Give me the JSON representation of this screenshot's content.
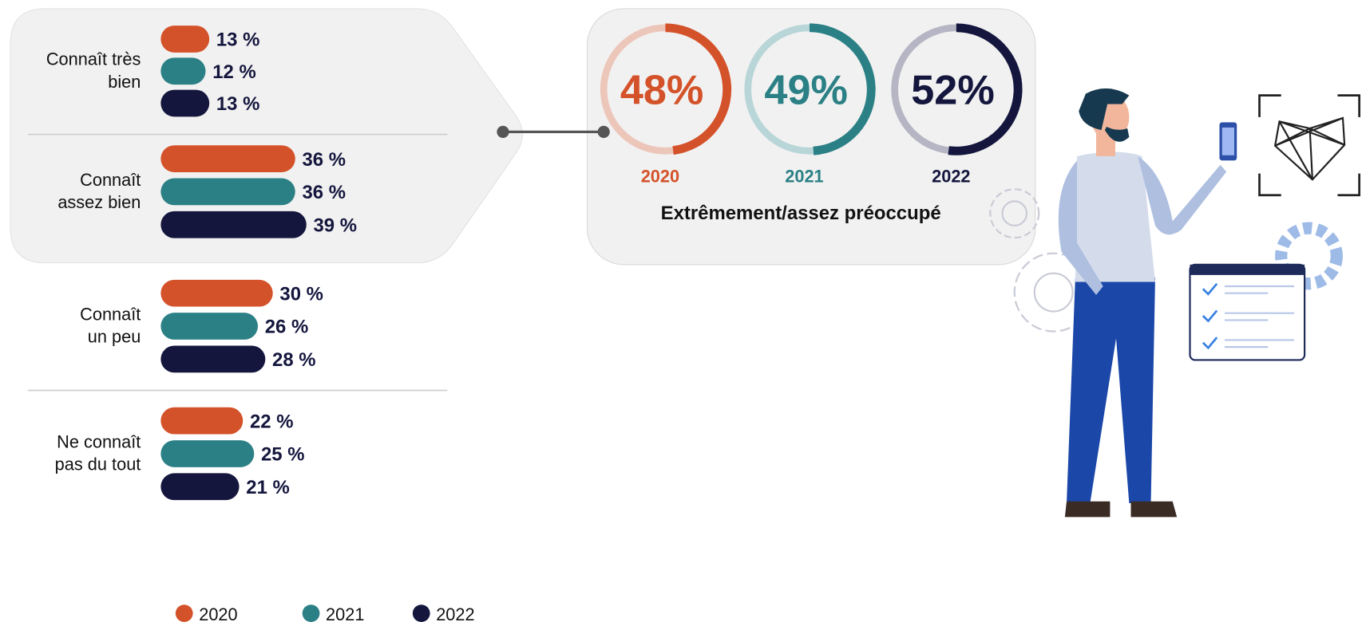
{
  "chart_data": [
    {
      "type": "bar",
      "orientation": "horizontal",
      "categories": [
        "Connaît très\nbien",
        "Connaît\nassez bien",
        "Connaît\nun peu",
        "Ne connaît\npas du tout"
      ],
      "series": [
        {
          "name": "2020",
          "color": "#d4522a",
          "values": [
            13,
            36,
            30,
            22
          ],
          "value_labels": [
            "13 %",
            "36 %",
            "30 %",
            "22 %"
          ]
        },
        {
          "name": "2021",
          "color": "#2b8085",
          "values": [
            12,
            36,
            26,
            25
          ],
          "value_labels": [
            "12 %",
            "36 %",
            "26 %",
            "25 %"
          ]
        },
        {
          "name": "2022",
          "color": "#14163d",
          "values": [
            13,
            39,
            28,
            21
          ],
          "value_labels": [
            "13 %",
            "39 %",
            "28 %",
            "21 %"
          ]
        }
      ]
    },
    {
      "type": "donut",
      "title": "Extrêmement/assez préoccupé",
      "categories": [
        "2020",
        "2021",
        "2022"
      ],
      "values": [
        48,
        49,
        52
      ],
      "value_labels": [
        "48%",
        "49%",
        "52%"
      ],
      "colors": [
        "#d4522a",
        "#2b8085",
        "#14163d"
      ]
    }
  ]
}
